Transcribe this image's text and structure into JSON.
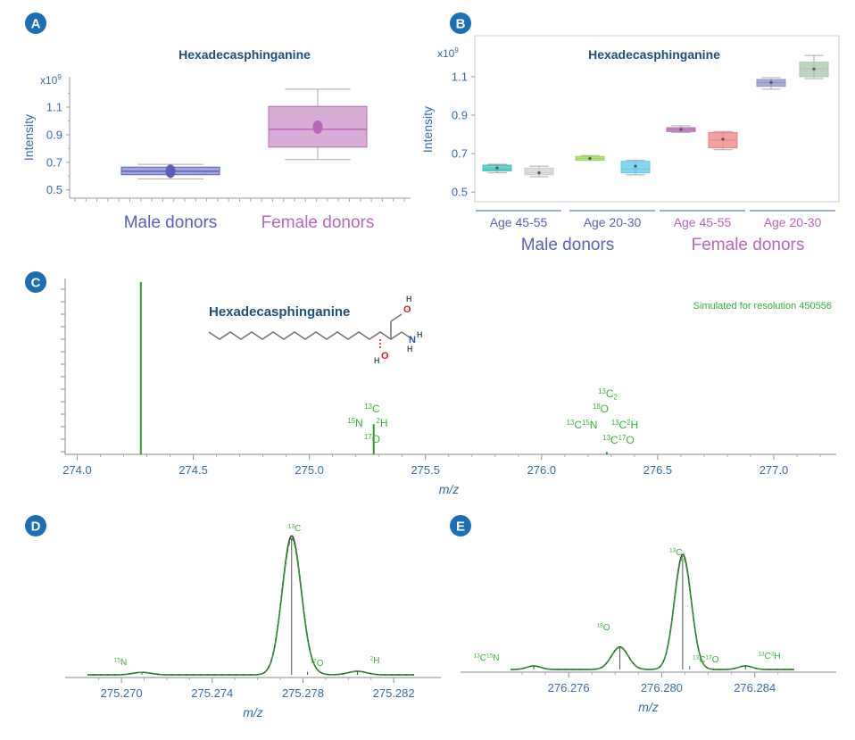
{
  "colors": {
    "badge": "#1a6fb5",
    "title": "#1f4e79",
    "axis_text": "#3a6aa8",
    "male": "#5a5fbf",
    "female": "#b669b4",
    "spectrum": "#2e9a2e",
    "iso_label": "#3cae3c",
    "measured": "#333333"
  },
  "panels": {
    "A": {
      "badge": "A"
    },
    "B": {
      "badge": "B"
    },
    "C": {
      "badge": "C"
    },
    "D": {
      "badge": "D"
    },
    "E": {
      "badge": "E"
    }
  },
  "structure": {
    "name": "Hexadecasphinganine",
    "atoms": {
      "o1": "O",
      "h1": "H",
      "n": "N",
      "hn1": "H",
      "hn2": "H",
      "o2": "O",
      "h2": "H"
    }
  },
  "chart_data": [
    {
      "id": "A",
      "type": "box",
      "title": "Hexadecasphinganine",
      "ylabel": "Intensity",
      "exponent": "x10",
      "exponent_power": "9",
      "ylim": [
        0.44,
        1.32
      ],
      "yticks": [
        0.5,
        0.7,
        0.9,
        1.1
      ],
      "ytick_labels": [
        "0.5",
        "0.7",
        "0.9",
        "1.1"
      ],
      "groups": [
        {
          "name": "Male donors",
          "color": "#5a5fbf",
          "whisker_low": 0.58,
          "q1": 0.61,
          "median": 0.635,
          "q3": 0.665,
          "whisker_high": 0.685,
          "mean": 0.635
        },
        {
          "name": "Female donors",
          "color": "#b669b4",
          "whisker_low": 0.72,
          "q1": 0.81,
          "median": 0.94,
          "q3": 1.105,
          "whisker_high": 1.23,
          "mean": 0.955
        }
      ]
    },
    {
      "id": "B",
      "type": "box",
      "title": "Hexadecasphinganine",
      "ylabel": "Intensity",
      "exponent": "x10",
      "exponent_power": "9",
      "ylim": [
        0.45,
        1.22
      ],
      "yticks": [
        0.5,
        0.7,
        0.9,
        1.1
      ],
      "ytick_labels": [
        "0.5",
        "0.7",
        "0.9",
        "1.1"
      ],
      "categories": [
        "Age 45-55",
        "Age 20-30",
        "Age 45-55",
        "Age 20-30"
      ],
      "group_labels": [
        "Male donors",
        "Female donors"
      ],
      "series": [
        {
          "name": "",
          "color": "#3ec1b8",
          "whisker_low": 0.6,
          "q1": 0.61,
          "median": 0.62,
          "q3": 0.64,
          "whisker_high": 0.645,
          "mean": 0.625
        },
        {
          "name": "",
          "color": "#cfcfcf",
          "whisker_low": 0.58,
          "q1": 0.59,
          "median": 0.6,
          "q3": 0.625,
          "whisker_high": 0.635,
          "mean": 0.6
        },
        {
          "name": "",
          "color": "#9fd35f",
          "whisker_low": 0.665,
          "q1": 0.665,
          "median": 0.675,
          "q3": 0.685,
          "whisker_high": 0.69,
          "mean": 0.675
        },
        {
          "name": "",
          "color": "#5ec8ea",
          "whisker_low": 0.59,
          "q1": 0.6,
          "median": 0.62,
          "q3": 0.66,
          "whisker_high": 0.665,
          "mean": 0.635
        },
        {
          "name": "",
          "color": "#b669b4",
          "whisker_low": 0.81,
          "q1": 0.815,
          "median": 0.825,
          "q3": 0.835,
          "whisker_high": 0.845,
          "mean": 0.825
        },
        {
          "name": "",
          "color": "#ef8080",
          "whisker_low": 0.72,
          "q1": 0.73,
          "median": 0.77,
          "q3": 0.81,
          "whisker_high": 0.815,
          "mean": 0.775
        },
        {
          "name": "",
          "color": "#8c8fc8",
          "whisker_low": 1.035,
          "q1": 1.05,
          "median": 1.07,
          "q3": 1.085,
          "whisker_high": 1.095,
          "mean": 1.07
        },
        {
          "name": "",
          "color": "#a9c6a9",
          "whisker_low": 1.09,
          "q1": 1.1,
          "median": 1.14,
          "q3": 1.175,
          "whisker_high": 1.21,
          "mean": 1.14
        }
      ]
    },
    {
      "id": "C",
      "type": "stick",
      "xlabel": "m/z",
      "annotation": "Simulated for resolution 450556",
      "xlim": [
        274.0,
        277.25
      ],
      "xticks": [
        274.0,
        274.5,
        275.0,
        275.5,
        276.0,
        276.5,
        277.0
      ],
      "xtick_labels": [
        "274.0",
        "274.5",
        "275.0",
        "275.5",
        "276.0",
        "276.5",
        "277.0"
      ],
      "ylim": [
        0,
        100
      ],
      "peaks": [
        {
          "mz": 274.274,
          "intensity": 100
        },
        {
          "mz": 275.277,
          "intensity": 17.5
        },
        {
          "mz": 276.281,
          "intensity": 1.4
        }
      ],
      "peak_labels": [
        {
          "iso": "13",
          "el": "C",
          "mz": 275.277
        },
        {
          "iso": "15",
          "el": "N",
          "mz": 275.271
        },
        {
          "iso": "2",
          "el": "H",
          "mz": 275.281
        },
        {
          "iso": "17",
          "el": "O",
          "mz": 275.277
        },
        {
          "iso": "13",
          "el": "C",
          "sub": "2",
          "mz": 276.28
        },
        {
          "iso": "18",
          "el": "O",
          "mz": 276.278
        },
        {
          "iso": "13",
          "el": "C",
          "iso2": "15",
          "el2": "N",
          "mz": 276.274
        },
        {
          "iso": "13",
          "el": "C",
          "iso2": "2",
          "el2": "H",
          "mz": 276.284
        },
        {
          "iso": "13",
          "el": "C",
          "iso2": "17",
          "el2": "O",
          "mz": 276.28
        }
      ]
    },
    {
      "id": "D",
      "type": "line",
      "xlabel": "m/z",
      "xlim": [
        275.2685,
        275.2829
      ],
      "xticks": [
        275.27,
        275.274,
        275.278,
        275.282
      ],
      "xtick_labels": [
        "275.270",
        "275.274",
        "275.278",
        "275.282"
      ],
      "ylim": [
        0,
        100
      ],
      "peaks": [
        {
          "label_iso": "15",
          "label_el": "N",
          "mz": 275.2709,
          "height": 1.8,
          "width": 0.0004
        },
        {
          "label_iso": "13",
          "label_el": "C",
          "mz": 275.2775,
          "height": 100,
          "width": 0.00042
        },
        {
          "label_iso": "17",
          "label_el": "O",
          "mz": 275.2782,
          "height": 2.2,
          "width": 0.0004
        },
        {
          "label_iso": "2",
          "label_el": "H",
          "mz": 275.2804,
          "height": 2.6,
          "width": 0.0004
        }
      ]
    },
    {
      "id": "E",
      "type": "line",
      "xlabel": "m/z",
      "xlim": [
        276.2735,
        276.2857
      ],
      "xticks": [
        276.276,
        276.28,
        276.284
      ],
      "xtick_labels": [
        "276.276",
        "276.280",
        "276.284"
      ],
      "ylim": [
        0,
        100
      ],
      "peaks": [
        {
          "label_iso": "13",
          "label_el": "C",
          "label_iso2": "15",
          "label_el2": "N",
          "mz": 276.2745,
          "height": 3.2,
          "width": 0.0003
        },
        {
          "label_iso": "18",
          "label_el": "O",
          "mz": 276.2782,
          "height": 20,
          "width": 0.00036
        },
        {
          "label_iso": "13",
          "label_el": "C",
          "label_sub": "2",
          "mz": 276.2809,
          "height": 100,
          "width": 0.00036
        },
        {
          "label_iso": "13",
          "label_el": "C",
          "label_iso2": "17",
          "label_el2": "O",
          "mz": 276.2812,
          "height": 3,
          "width": 0.0003
        },
        {
          "label_iso": "13",
          "label_el": "C",
          "label_iso2": "2",
          "label_el2": "H",
          "mz": 276.2836,
          "height": 3.2,
          "width": 0.0003
        }
      ]
    }
  ]
}
